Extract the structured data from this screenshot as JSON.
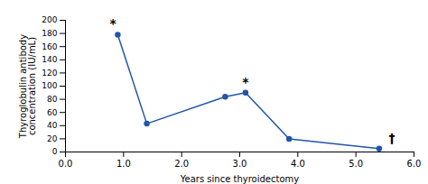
{
  "chart_data": {
    "type": "line",
    "x": [
      0.9,
      1.4,
      2.75,
      3.1,
      3.85,
      5.4
    ],
    "values": [
      178,
      43,
      84,
      90,
      20,
      5
    ],
    "color": "#2255aa",
    "marker": "circle",
    "grid": false,
    "xlabel": "Years since thyroidectomy",
    "ylabel": "Thyroglobulin antibody\nconcentration (IU/mL)",
    "xlim": [
      0,
      6
    ],
    "ylim": [
      0,
      200
    ],
    "xticks": [
      0,
      1,
      2,
      3,
      4,
      5,
      6
    ],
    "yticks": [
      0,
      20,
      40,
      60,
      80,
      100,
      120,
      140,
      160,
      180,
      200
    ],
    "annotations": [
      {
        "x": 0.82,
        "y": 188,
        "text": "*"
      },
      {
        "x": 3.1,
        "y": 100,
        "text": "*"
      },
      {
        "x": 5.62,
        "y": 15,
        "text": "†"
      }
    ]
  }
}
